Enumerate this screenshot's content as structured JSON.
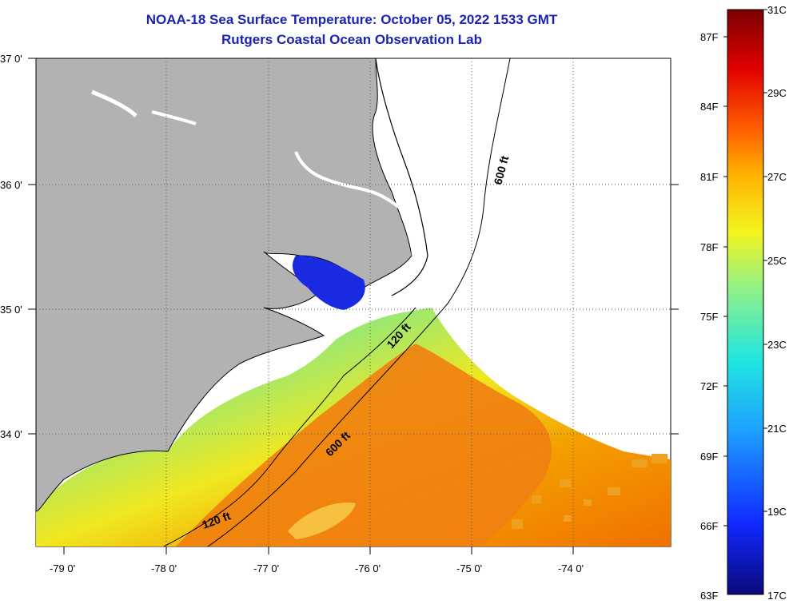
{
  "title_line1": "NOAA-18 Sea Surface Temperature:  October 05, 2022 1533 GMT",
  "title_line2": "Rutgers Coastal Ocean Observation Lab",
  "map": {
    "lat_labels": [
      "37 0'",
      "36 0'",
      "35 0'",
      "34 0'"
    ],
    "lon_labels": [
      "-79 0'",
      "-78 0'",
      "-77 0'",
      "-76 0'",
      "-75 0'",
      "-74 0'"
    ],
    "contour_labels": [
      "600 ft",
      "120 ft",
      "600 ft",
      "120 ft"
    ]
  },
  "colorbar": {
    "fahrenheit_labels": [
      "87F",
      "84F",
      "81F",
      "78F",
      "75F",
      "72F",
      "69F",
      "66F",
      "63F"
    ],
    "celsius_labels": [
      "31C",
      "29C",
      "27C",
      "25C",
      "23C",
      "21C",
      "19C",
      "17C"
    ],
    "colors": [
      "#0a0a7a",
      "#1028ff",
      "#1ea0ff",
      "#20e6e0",
      "#8ff08a",
      "#f3f51e",
      "#ffb000",
      "#ff5a00",
      "#e00000",
      "#7a0000"
    ]
  }
}
